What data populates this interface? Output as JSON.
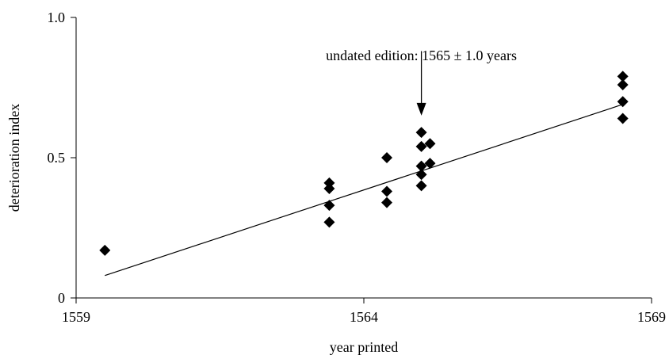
{
  "chart_data": {
    "type": "scatter",
    "xlabel": "year printed",
    "ylabel": "deterioration index",
    "xlim": [
      1559,
      1569
    ],
    "ylim": [
      0,
      1.0
    ],
    "x_ticks": [
      1559,
      1564,
      1569
    ],
    "y_ticks": [
      0,
      0.5,
      1.0
    ],
    "x_tick_labels": [
      "1559",
      "1564",
      "1569"
    ],
    "y_tick_labels": [
      "0",
      "0.5",
      "1.0"
    ],
    "grid": false,
    "points": [
      {
        "x": 1559.5,
        "y": 0.17
      },
      {
        "x": 1563.4,
        "y": 0.41
      },
      {
        "x": 1563.4,
        "y": 0.39
      },
      {
        "x": 1563.4,
        "y": 0.33
      },
      {
        "x": 1563.4,
        "y": 0.27
      },
      {
        "x": 1564.4,
        "y": 0.5
      },
      {
        "x": 1564.4,
        "y": 0.38
      },
      {
        "x": 1564.4,
        "y": 0.34
      },
      {
        "x": 1565.0,
        "y": 0.59
      },
      {
        "x": 1565.0,
        "y": 0.54
      },
      {
        "x": 1565.0,
        "y": 0.47
      },
      {
        "x": 1565.0,
        "y": 0.44
      },
      {
        "x": 1565.0,
        "y": 0.4
      },
      {
        "x": 1565.15,
        "y": 0.55
      },
      {
        "x": 1565.15,
        "y": 0.48
      },
      {
        "x": 1568.5,
        "y": 0.79
      },
      {
        "x": 1568.5,
        "y": 0.76
      },
      {
        "x": 1568.5,
        "y": 0.7
      },
      {
        "x": 1568.5,
        "y": 0.64
      }
    ],
    "trendline": {
      "x": [
        1559.5,
        1568.5
      ],
      "y": [
        0.08,
        0.69
      ]
    },
    "annotation": {
      "text": "undated edition: 1565 ± 1.0 years",
      "arrow_x": 1565.0,
      "arrow_y_start": 0.88,
      "arrow_y_end": 0.65
    }
  }
}
